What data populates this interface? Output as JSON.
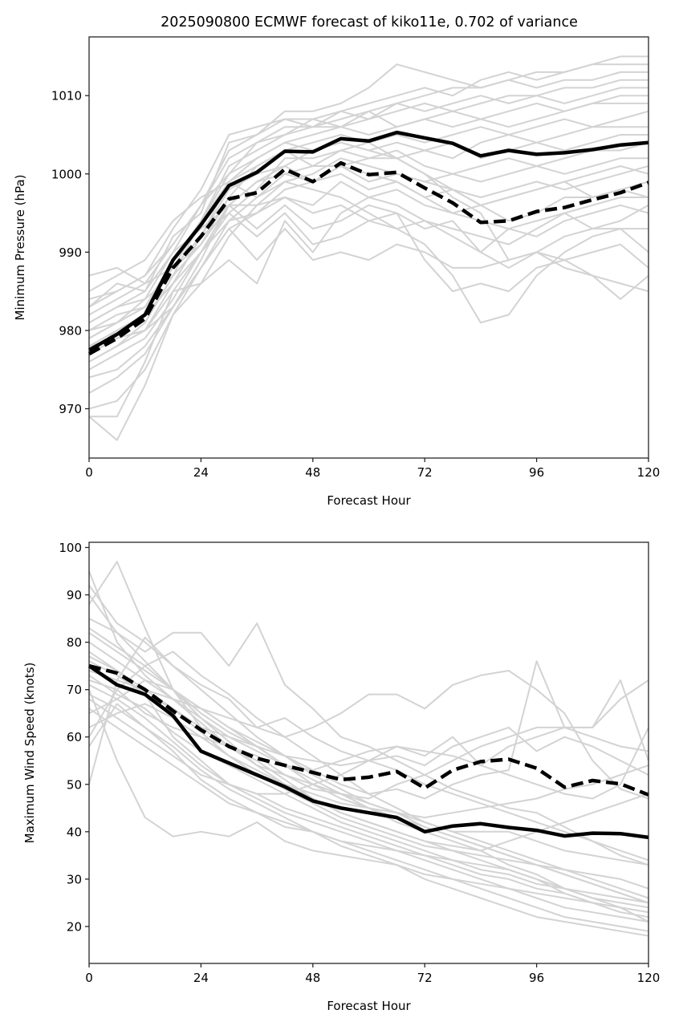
{
  "figure_title": "2025090800 ECMWF forecast of kiko11e, 0.702 of variance",
  "colors": {
    "ensemble": "#d3d3d3",
    "highlight": "#000000",
    "axes": "#262626"
  },
  "chart_data": [
    {
      "type": "line",
      "title": "2025090800 ECMWF forecast of kiko11e, 0.702 of variance",
      "xlabel": "Forecast Hour",
      "ylabel": "Minimum Pressure (hPa)",
      "xlim": [
        0,
        120
      ],
      "ylim": [
        963.7,
        1017.5
      ],
      "xticks": [
        0,
        24,
        48,
        72,
        96,
        120
      ],
      "yticks": [
        970,
        980,
        990,
        1000,
        1010
      ],
      "grid": false,
      "x": [
        0,
        6,
        12,
        18,
        24,
        30,
        36,
        42,
        48,
        54,
        60,
        66,
        72,
        78,
        84,
        90,
        96,
        102,
        108,
        114,
        120
      ],
      "series": [
        {
          "name": "highlight-solid",
          "style": "solid",
          "values": [
            977.5,
            979.5,
            982,
            989,
            993.5,
            998.5,
            1000.2,
            1002.9,
            1002.8,
            1004.5,
            1004.2,
            1005.3,
            1004.6,
            1003.9,
            1002.3,
            1003,
            1002.5,
            1002.7,
            1003.1,
            1003.7,
            1004
          ]
        },
        {
          "name": "highlight-dashed",
          "style": "dashed",
          "values": [
            977,
            979,
            981.5,
            988,
            992,
            996.8,
            997.6,
            1000.6,
            999,
            1001.4,
            999.9,
            1000.2,
            998.2,
            996.3,
            993.8,
            994,
            995.2,
            995.7,
            996.7,
            997.6,
            998.9
          ]
        }
      ],
      "ensemble": [
        [
          987,
          988,
          986,
          991,
          996,
          1003,
          1005,
          1008,
          1008,
          1009,
          1011,
          1014,
          1013,
          1012,
          1011,
          1012,
          1013,
          1013,
          1014,
          1015,
          1015
        ],
        [
          984,
          985,
          987,
          993,
          998,
          1005,
          1006,
          1007,
          1006,
          1008,
          1009,
          1010,
          1011,
          1010,
          1012,
          1013,
          1012,
          1013,
          1014,
          1014,
          1014
        ],
        [
          981,
          983,
          984,
          990,
          996,
          1002,
          1004,
          1006,
          1006,
          1007,
          1008,
          1009,
          1010,
          1011,
          1011,
          1012,
          1011,
          1012,
          1012,
          1013,
          1013
        ],
        [
          980,
          982,
          983,
          988,
          994,
          1001,
          1003,
          1005,
          1006,
          1006,
          1007,
          1008,
          1009,
          1008,
          1009,
          1010,
          1010,
          1011,
          1011,
          1012,
          1012
        ],
        [
          979,
          981,
          984,
          987,
          994,
          1000,
          1004,
          1005,
          1007,
          1008,
          1007,
          1009,
          1008,
          1009,
          1010,
          1009,
          1010,
          1009,
          1010,
          1011,
          1011
        ],
        [
          983,
          986,
          985,
          992,
          995,
          1004,
          1005,
          1007,
          1007,
          1006,
          1008,
          1006,
          1007,
          1008,
          1007,
          1008,
          1009,
          1008,
          1009,
          1010,
          1010
        ],
        [
          977,
          980,
          982,
          986,
          992,
          999,
          1002,
          1004,
          1005,
          1006,
          1005,
          1006,
          1007,
          1006,
          1007,
          1006,
          1007,
          1008,
          1009,
          1009,
          1009
        ],
        [
          976,
          978,
          981,
          987,
          991,
          997,
          1001,
          1003,
          1004,
          1005,
          1004,
          1005,
          1004,
          1005,
          1006,
          1005,
          1006,
          1007,
          1006,
          1007,
          1008
        ],
        [
          978,
          979,
          980,
          985,
          990,
          996,
          999,
          1001,
          1003,
          1004,
          1003,
          1004,
          1003,
          1002,
          1004,
          1005,
          1004,
          1005,
          1006,
          1006,
          1006
        ],
        [
          975,
          977,
          979,
          984,
          990,
          995,
          998,
          1002,
          1002,
          1003,
          1004,
          1002,
          1003,
          1004,
          1002,
          1003,
          1004,
          1003,
          1004,
          1005,
          1005
        ],
        [
          974,
          975,
          978,
          983,
          989,
          996,
          999,
          1000,
          1001,
          1001,
          1002,
          1003,
          1001,
          1000,
          1001,
          1002,
          1001,
          1002,
          1003,
          1003,
          1004
        ],
        [
          972,
          974,
          977,
          983,
          988,
          994,
          997,
          999,
          1000,
          1002,
          1001,
          1000,
          999,
          1000,
          999,
          1000,
          1001,
          1000,
          1001,
          1002,
          1002
        ],
        [
          970,
          971,
          975,
          982,
          988,
          993,
          995,
          998,
          999,
          1000,
          998,
          999,
          997,
          998,
          997,
          998,
          999,
          998,
          999,
          1000,
          1001
        ],
        [
          969,
          966,
          973,
          982,
          986,
          992,
          996,
          997,
          996,
          999,
          997,
          998,
          996,
          995,
          996,
          994,
          995,
          997,
          997,
          998,
          999
        ],
        [
          969,
          969,
          976,
          985,
          986,
          989,
          986,
          994,
          990,
          995,
          997,
          996,
          994,
          993,
          992,
          991,
          993,
          995,
          996,
          997,
          997
        ],
        [
          981,
          983,
          985,
          990,
          993,
          996,
          993,
          996,
          993,
          994,
          996,
          995,
          993,
          994,
          990,
          993,
          994,
          995,
          993,
          994,
          996
        ],
        [
          985,
          987,
          989,
          994,
          997,
          999,
          997,
          1000,
          999,
          1001,
          1000,
          999,
          997,
          995,
          994,
          993,
          992,
          994,
          995,
          996,
          995
        ],
        [
          979,
          981,
          983,
          988,
          992,
          995,
          992,
          995,
          991,
          992,
          994,
          993,
          994,
          992,
          990,
          988,
          990,
          992,
          993,
          993,
          993
        ],
        [
          977,
          979,
          980,
          983,
          988,
          993,
          989,
          993,
          989,
          990,
          989,
          991,
          990,
          988,
          988,
          989,
          990,
          989,
          990,
          991,
          988
        ],
        [
          982,
          984,
          986,
          988,
          991,
          996,
          996,
          999,
          998,
          997,
          995,
          993,
          991,
          987,
          981,
          982,
          987,
          990,
          992,
          993,
          990
        ],
        [
          978,
          980,
          982,
          986,
          990,
          994,
          995,
          997,
          995,
          996,
          994,
          995,
          989,
          985,
          986,
          985,
          988,
          989,
          987,
          984,
          987
        ],
        [
          983,
          985,
          987,
          991,
          996,
          1000,
          1002,
          1004,
          1003,
          1004,
          1003,
          1002,
          1000,
          997,
          995,
          989,
          990,
          988,
          987,
          986,
          985
        ],
        [
          980,
          981,
          983,
          989,
          994,
          999,
          1001,
          1003,
          1001,
          1003,
          1002,
          1002,
          1000,
          998,
          996,
          997,
          998,
          999,
          997,
          998,
          997
        ],
        [
          976,
          978,
          980,
          986,
          992,
          998,
          1000,
          1001,
          999,
          1001,
          999,
          1000,
          999,
          998,
          996,
          997,
          998,
          999,
          1000,
          1001,
          1000
        ]
      ]
    },
    {
      "type": "line",
      "title": "",
      "xlabel": "Forecast Hour",
      "ylabel": "Maximum Wind Speed (knots)",
      "xlim": [
        0,
        120
      ],
      "ylim": [
        12.2,
        101.1
      ],
      "xticks": [
        0,
        24,
        48,
        72,
        96,
        120
      ],
      "yticks": [
        20,
        30,
        40,
        50,
        60,
        70,
        80,
        90,
        100
      ],
      "grid": false,
      "x": [
        0,
        6,
        12,
        18,
        24,
        30,
        36,
        42,
        48,
        54,
        60,
        66,
        72,
        78,
        84,
        90,
        96,
        102,
        108,
        114,
        120
      ],
      "series": [
        {
          "name": "highlight-solid",
          "style": "solid",
          "values": [
            75,
            71,
            69,
            64.5,
            57,
            54.5,
            52,
            49.5,
            46.5,
            45,
            44,
            43,
            40,
            41.2,
            41.7,
            40.9,
            40.3,
            39.1,
            39.7,
            39.6,
            38.8
          ]
        },
        {
          "name": "highlight-dashed",
          "style": "dashed",
          "values": [
            75,
            73.5,
            70,
            65.5,
            61.5,
            58,
            55.5,
            54,
            52.5,
            51,
            51.5,
            52.7,
            49.2,
            53,
            54.8,
            55.3,
            53.4,
            49.4,
            50.8,
            50.1,
            47.8
          ]
        }
      ],
      "ensemble": [
        [
          95,
          80,
          73,
          68,
          63,
          58,
          55,
          51,
          47,
          44,
          42,
          40,
          38,
          36,
          34,
          32,
          30,
          27,
          25,
          23,
          22
        ],
        [
          88,
          97,
          83,
          70,
          62,
          60,
          58,
          54,
          50,
          47,
          45,
          42,
          40,
          38,
          36,
          33,
          31,
          28,
          26,
          24,
          21
        ],
        [
          92,
          84,
          80,
          75,
          70,
          65,
          60,
          56,
          52,
          49,
          46,
          44,
          41,
          39,
          37,
          35,
          33,
          31,
          29,
          27,
          25
        ],
        [
          85,
          82,
          78,
          82,
          82,
          75,
          84,
          71,
          66,
          60,
          58,
          55,
          52,
          49,
          47,
          45,
          44,
          41,
          38,
          35,
          33
        ],
        [
          50,
          72,
          81,
          75,
          71,
          68,
          62,
          64,
          60,
          57,
          55,
          53,
          50,
          48,
          46,
          44,
          42,
          40,
          38,
          36,
          34
        ],
        [
          60,
          70,
          75,
          78,
          73,
          69,
          64,
          60,
          56,
          52,
          48,
          45,
          42,
          40,
          38,
          36,
          34,
          32,
          30,
          28,
          26
        ],
        [
          65,
          68,
          72,
          70,
          66,
          62,
          58,
          54,
          51,
          48,
          45,
          43,
          41,
          39,
          37,
          35,
          33,
          31,
          29,
          27,
          25
        ],
        [
          78,
          74,
          69,
          60,
          55,
          50,
          48,
          45,
          43,
          41,
          39,
          37,
          35,
          33,
          31,
          30,
          28,
          27,
          25,
          24,
          23
        ],
        [
          70,
          55,
          43,
          39,
          40,
          39,
          42,
          38,
          36,
          35,
          34,
          33,
          30,
          28,
          26,
          24,
          22,
          21,
          20,
          19,
          18
        ],
        [
          80,
          76,
          72,
          68,
          64,
          60,
          57,
          54,
          53,
          55,
          57,
          58,
          56,
          60,
          54,
          52,
          50,
          48,
          47,
          50,
          62
        ],
        [
          72,
          70,
          65,
          62,
          60,
          58,
          54,
          52,
          49,
          48,
          47,
          50,
          52,
          55,
          58,
          60,
          62,
          62,
          62,
          68,
          72
        ],
        [
          82,
          78,
          74,
          70,
          66,
          62,
          59,
          56,
          53,
          50,
          48,
          49,
          47,
          50,
          52,
          53,
          76,
          62,
          62,
          72,
          55
        ],
        [
          68,
          64,
          60,
          56,
          52,
          50,
          48,
          48,
          50,
          52,
          55,
          56,
          54,
          58,
          60,
          62,
          57,
          60,
          58,
          55,
          52
        ],
        [
          74,
          72,
          70,
          68,
          66,
          64,
          62,
          60,
          62,
          65,
          69,
          69,
          66,
          71,
          73,
          74,
          70,
          65,
          55,
          49,
          47
        ],
        [
          76,
          73,
          69,
          66,
          62,
          58,
          56,
          52,
          50,
          48,
          46,
          44,
          42,
          40,
          40,
          40,
          38,
          36,
          35,
          34,
          33
        ],
        [
          66,
          62,
          58,
          54,
          50,
          46,
          44,
          42,
          40,
          38,
          36,
          34,
          32,
          30,
          28,
          26,
          24,
          22,
          21,
          20,
          19
        ],
        [
          71,
          68,
          64,
          59,
          54,
          50,
          47,
          44,
          42,
          40,
          38,
          36,
          34,
          32,
          30,
          28,
          26,
          24,
          23,
          22,
          21
        ],
        [
          58,
          67,
          62,
          57,
          51,
          47,
          44,
          41,
          40,
          38,
          37,
          36,
          35,
          34,
          33,
          32,
          30,
          28,
          26,
          25,
          24
        ],
        [
          90,
          82,
          76,
          70,
          65,
          61,
          58,
          56,
          55,
          54,
          55,
          58,
          57,
          56,
          54,
          58,
          60,
          62,
          60,
          58,
          57
        ],
        [
          73,
          69,
          66,
          61,
          57,
          54,
          51,
          48,
          45,
          42,
          40,
          38,
          36,
          34,
          32,
          31,
          29,
          28,
          27,
          26,
          25
        ],
        [
          69,
          66,
          62,
          58,
          53,
          49,
          46,
          43,
          40,
          37,
          35,
          33,
          31,
          30,
          29,
          28,
          27,
          26,
          25,
          24,
          23
        ],
        [
          77,
          74,
          70,
          66,
          61,
          56,
          52,
          49,
          46,
          43,
          41,
          39,
          37,
          36,
          35,
          34,
          33,
          32,
          31,
          30,
          28
        ],
        [
          83,
          79,
          75,
          70,
          64,
          59,
          54,
          50,
          47,
          44,
          42,
          40,
          38,
          37,
          36,
          38,
          40,
          42,
          44,
          46,
          48
        ],
        [
          62,
          65,
          67,
          64,
          60,
          56,
          53,
          50,
          48,
          46,
          45,
          44,
          43,
          44,
          45,
          46,
          47,
          49,
          50,
          52,
          54
        ]
      ]
    }
  ]
}
